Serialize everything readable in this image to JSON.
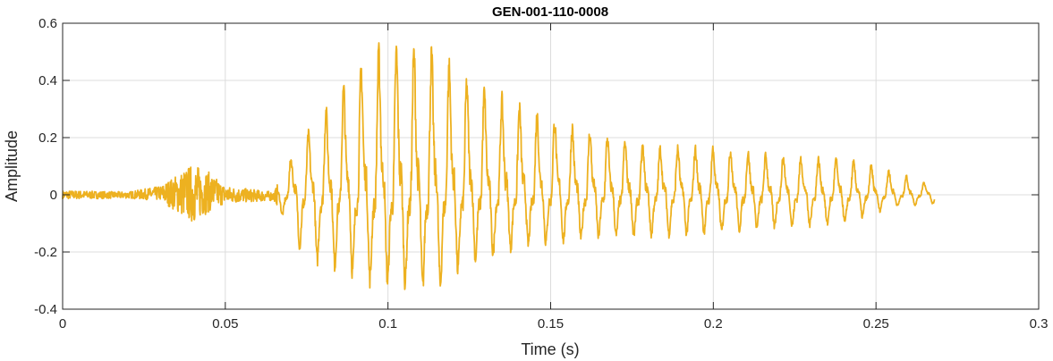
{
  "chart_data": {
    "type": "line",
    "title": "GEN-001-110-0008",
    "xlabel": "Time (s)",
    "ylabel": "Amplitude",
    "xlim": [
      0,
      0.3
    ],
    "ylim": [
      -0.4,
      0.6
    ],
    "xticks": [
      0,
      0.05,
      0.1,
      0.15,
      0.2,
      0.25,
      0.3
    ],
    "xtick_labels": [
      "0",
      "0.05",
      "0.1",
      "0.15",
      "0.2",
      "0.25",
      "0.3"
    ],
    "yticks": [
      -0.4,
      -0.2,
      0,
      0.2,
      0.4,
      0.6
    ],
    "ytick_labels": [
      "-0.4",
      "-0.2",
      "0",
      "0.2",
      "0.4",
      "0.6"
    ],
    "grid": true,
    "series": [
      {
        "color": "#EDB120",
        "duration": 0.268,
        "envelope": [
          {
            "t": 0.0,
            "up": 0.015,
            "down": -0.015
          },
          {
            "t": 0.02,
            "up": 0.01,
            "down": -0.012
          },
          {
            "t": 0.03,
            "up": 0.03,
            "down": -0.02
          },
          {
            "t": 0.04,
            "up": 0.11,
            "down": -0.1
          },
          {
            "t": 0.045,
            "up": 0.08,
            "down": -0.06
          },
          {
            "t": 0.05,
            "up": 0.03,
            "down": -0.03
          },
          {
            "t": 0.065,
            "up": 0.01,
            "down": -0.02
          },
          {
            "t": 0.068,
            "up": 0.09,
            "down": -0.08
          },
          {
            "t": 0.075,
            "up": 0.2,
            "down": -0.22
          },
          {
            "t": 0.085,
            "up": 0.35,
            "down": -0.25
          },
          {
            "t": 0.095,
            "up": 0.48,
            "down": -0.3
          },
          {
            "t": 0.105,
            "up": 0.5,
            "down": -0.31
          },
          {
            "t": 0.115,
            "up": 0.48,
            "down": -0.33
          },
          {
            "t": 0.125,
            "up": 0.38,
            "down": -0.23
          },
          {
            "t": 0.14,
            "up": 0.3,
            "down": -0.18
          },
          {
            "t": 0.16,
            "up": 0.22,
            "down": -0.15
          },
          {
            "t": 0.18,
            "up": 0.16,
            "down": -0.14
          },
          {
            "t": 0.2,
            "up": 0.16,
            "down": -0.13
          },
          {
            "t": 0.22,
            "up": 0.13,
            "down": -0.11
          },
          {
            "t": 0.24,
            "up": 0.12,
            "down": -0.1
          },
          {
            "t": 0.255,
            "up": 0.08,
            "down": -0.04
          },
          {
            "t": 0.268,
            "up": 0.03,
            "down": -0.03
          }
        ]
      }
    ]
  }
}
